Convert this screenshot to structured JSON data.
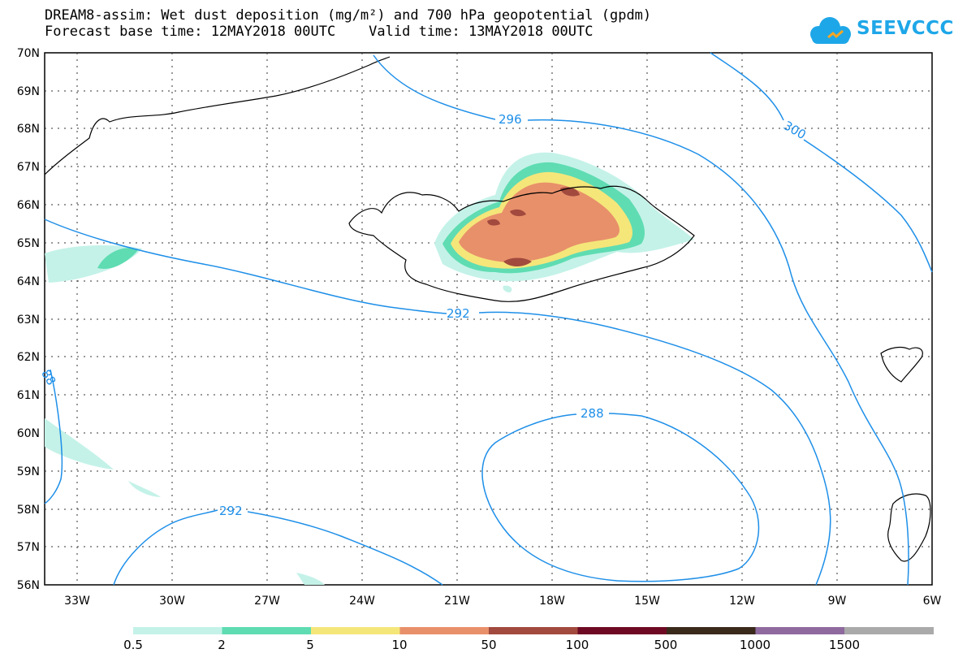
{
  "title_line1": "DREAM8-assim: Wet dust deposition (mg/m²) and 700 hPa geopotential (gpdm)",
  "title_line2": "Forecast base time: 12MAY2018 00UTC    Valid time: 13MAY2018 00UTC",
  "logo_text": "SEEVCCC",
  "map": {
    "lon_range": [
      -34,
      -6
    ],
    "lat_range": [
      56,
      70
    ],
    "lat_labels": [
      "70N",
      "69N",
      "68N",
      "67N",
      "66N",
      "65N",
      "64N",
      "63N",
      "62N",
      "61N",
      "60N",
      "59N",
      "58N",
      "57N",
      "56N"
    ],
    "lon_labels": [
      "33W",
      "30W",
      "27W",
      "24W",
      "21W",
      "18W",
      "15W",
      "12W",
      "9W",
      "6W"
    ],
    "contour_labels": [
      "296",
      "300",
      "292",
      "288",
      "292",
      "88"
    ]
  },
  "colorbar": {
    "labels": [
      "0.5",
      "2",
      "5",
      "10",
      "50",
      "100",
      "500",
      "1000",
      "1500"
    ],
    "colors": [
      "#c4f2e8",
      "#5fdcb2",
      "#f5e67a",
      "#e8906a",
      "#a24a3e",
      "#6e0a24",
      "#3a2a1c",
      "#8e6a9e",
      "#aaaaaa"
    ]
  },
  "colors": {
    "contour": "#1e8fe8",
    "grid": "#333333"
  }
}
